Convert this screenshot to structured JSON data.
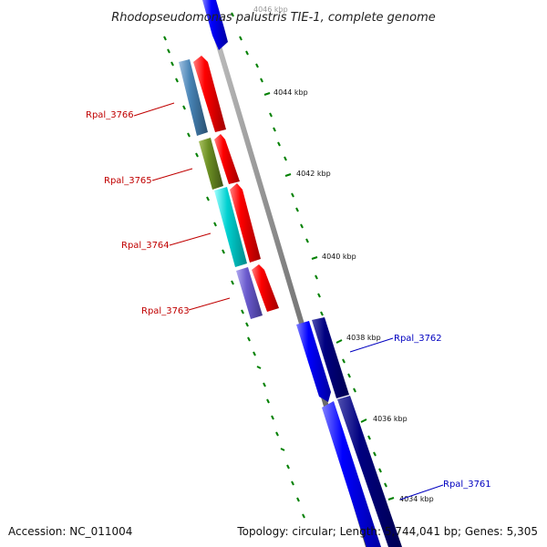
{
  "title": "Rhodopseudomonas palustris TIE-1, complete genome",
  "footer": {
    "accession": "Accession: NC_011004",
    "summary": "Topology: circular; Length: 5,744,041 bp; Genes: 5,305"
  },
  "tick_labels": [
    "4046 kbp",
    "4044 kbp",
    "4042 kbp",
    "4040 kbp",
    "4038 kbp",
    "4036 kbp",
    "4034 kbp"
  ],
  "genes": [
    {
      "label": "Rpal_3766",
      "color": "#c00000"
    },
    {
      "label": "Rpal_3765",
      "color": "#c00000"
    },
    {
      "label": "Rpal_3764",
      "color": "#c00000"
    },
    {
      "label": "Rpal_3763",
      "color": "#c00000"
    },
    {
      "label": "Rpal_3762",
      "color": "#0000c0"
    },
    {
      "label": "Rpal_3761",
      "color": "#0000c0"
    }
  ],
  "colors": {
    "forward_gene": "#ff0000",
    "reverse_gene_blue": "#0000ff",
    "reverse_gene_navy": "#000080",
    "backbone": "#808080",
    "tick": "#008000",
    "cog_steelblue": "#4682b4",
    "cog_olive": "#6b8e23",
    "cog_cyan": "#00cccc",
    "cog_slateblue": "#6a5acd"
  }
}
